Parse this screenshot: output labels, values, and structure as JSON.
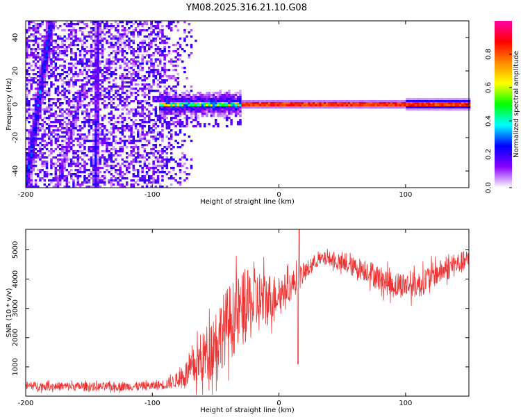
{
  "title": "YM08.2025.316.21.10.G08",
  "chart_data": [
    {
      "type": "heatmap",
      "xlabel": "Height of straight line (km)",
      "ylabel": "Frequency (Hz)",
      "xlim": [
        -200,
        150
      ],
      "ylim": [
        -50,
        50
      ],
      "xticks": [
        -200,
        -100,
        0,
        100
      ],
      "xtick_labels": [
        "-200",
        "-100",
        "0",
        "100"
      ],
      "yticks": [
        -40,
        -20,
        0,
        20,
        40
      ],
      "ytick_labels": [
        "-40",
        "-20",
        "0",
        "20",
        "40"
      ],
      "colorbar": {
        "label": "Normalized spectral amplitude",
        "range": [
          0,
          1
        ],
        "ticks": [
          0,
          0.2,
          0.4,
          0.6,
          0.8
        ],
        "tick_labels": [
          "0.0",
          "0.2",
          "0.4",
          "0.6",
          "0.8"
        ],
        "colormap": [
          "#ffffff",
          "#8800ff",
          "#0000ff",
          "#00ffff",
          "#00ff00",
          "#ffff00",
          "#ff8800",
          "#ff0000",
          "#ff00aa"
        ]
      },
      "features": [
        {
          "name": "carrier",
          "freq": 0,
          "x_start": -95,
          "x_end": 150,
          "amplitude": 0.9
        },
        {
          "name": "noise",
          "x_start": -200,
          "x_end": -75,
          "amplitude": 0.15
        },
        {
          "name": "streak-1",
          "points": [
            [
              -200,
              -50
            ],
            [
              -180,
              50
            ]
          ],
          "amplitude": 0.25
        },
        {
          "name": "streak-2",
          "points": [
            [
              -145,
              -50
            ],
            [
              -143,
              50
            ]
          ],
          "amplitude": 0.2
        },
        {
          "name": "streak-3",
          "points": [
            [
              -175,
              -50
            ],
            [
              -155,
              10
            ]
          ],
          "amplitude": 0.15
        }
      ]
    },
    {
      "type": "line",
      "xlabel": "Height of straight line (km)",
      "ylabel": "SNR (10 * v/v)",
      "xlim": [
        -200,
        150
      ],
      "ylim": [
        0,
        5700
      ],
      "xticks": [
        -200,
        -100,
        0,
        100
      ],
      "xtick_labels": [
        "-200",
        "-100",
        "0",
        "100"
      ],
      "yticks": [
        1000,
        2000,
        3000,
        4000,
        5000
      ],
      "ytick_labels": [
        "1000",
        "2000",
        "3000",
        "4000",
        "5000"
      ],
      "color": "#ee3333",
      "series": [
        {
          "name": "SNR",
          "x": [
            -200,
            -180,
            -160,
            -140,
            -120,
            -100,
            -90,
            -80,
            -70,
            -60,
            -50,
            -40,
            -30,
            -20,
            -10,
            0,
            10,
            20,
            30,
            40,
            50,
            60,
            70,
            80,
            90,
            100,
            110,
            120,
            130,
            140,
            150
          ],
          "y": [
            350,
            340,
            330,
            320,
            330,
            350,
            400,
            550,
            850,
            1300,
            1900,
            2500,
            2900,
            3200,
            3300,
            3500,
            3800,
            4200,
            4650,
            4700,
            4500,
            4400,
            4300,
            4000,
            3800,
            3800,
            3800,
            4100,
            4300,
            4500,
            4650
          ],
          "noise_amplitude": [
            150,
            150,
            150,
            150,
            150,
            150,
            180,
            250,
            600,
            900,
            1200,
            1300,
            1300,
            1200,
            1000,
            600,
            500,
            350,
            250,
            250,
            300,
            350,
            400,
            450,
            450,
            450,
            450,
            450,
            400,
            400,
            350
          ]
        }
      ],
      "annotations": [
        {
          "x": 16,
          "y": 5700,
          "label": ""
        },
        {
          "x": 15,
          "y": 1100,
          "label": ""
        }
      ]
    }
  ]
}
